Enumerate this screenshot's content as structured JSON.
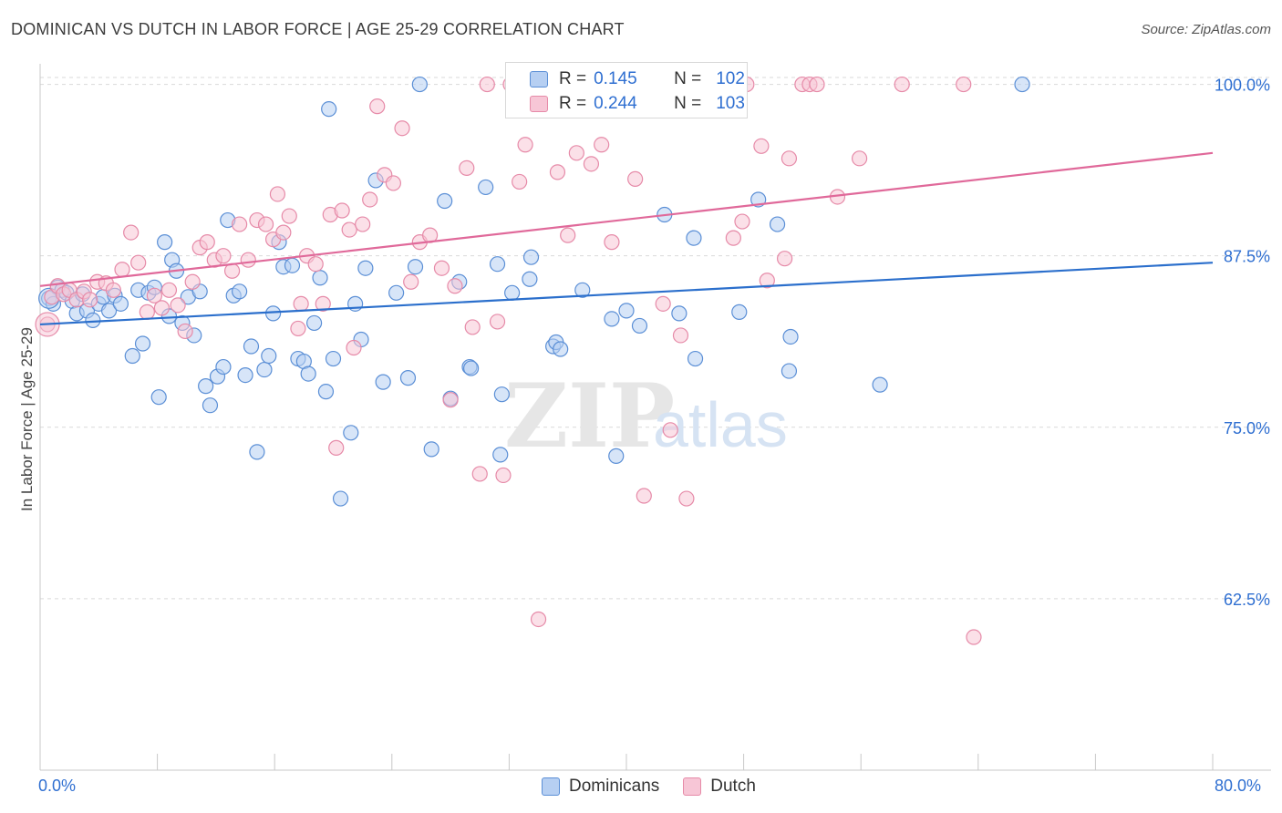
{
  "title": "DOMINICAN VS DUTCH IN LABOR FORCE | AGE 25-29 CORRELATION CHART",
  "source": "Source: ZipAtlas.com",
  "watermark": {
    "zip": "ZIP",
    "atlas": "atlas"
  },
  "colors": {
    "blue_fill": "#b6cff2",
    "blue_stroke": "#5b8fd6",
    "blue_line": "#2b6fcc",
    "pink_fill": "#f7c6d6",
    "pink_stroke": "#e68aa8",
    "pink_line": "#e0699a",
    "tick_label": "#2f6fd1",
    "grid": "#d9d9d9"
  },
  "legend_top": {
    "rows": [
      {
        "r_label": "R =",
        "r_value": "0.145",
        "n_label": "N =",
        "n_value": "102"
      },
      {
        "r_label": "R =",
        "r_value": "0.244",
        "n_label": "N =",
        "n_value": "103"
      }
    ]
  },
  "legend_bottom": {
    "items": [
      "Dominicans",
      "Dutch"
    ]
  },
  "chart_data": {
    "type": "scatter",
    "title": "DOMINICAN VS DUTCH IN LABOR FORCE | AGE 25-29 CORRELATION CHART",
    "xlabel": "",
    "ylabel": "In Labor Force | Age 25-29",
    "xlim": [
      0,
      80
    ],
    "ylim": [
      50,
      101.5
    ],
    "x_tick_labels": [
      "0.0%",
      "80.0%"
    ],
    "y_ticks": [
      62.5,
      75.0,
      87.5,
      100.0
    ],
    "y_tick_labels": [
      "62.5%",
      "75.0%",
      "87.5%",
      "100.0%"
    ],
    "grid": "horizontal dashed",
    "legend_position": "top-center",
    "series": [
      {
        "name": "Dominicans",
        "trend": {
          "x": [
            0,
            80
          ],
          "y": [
            82.5,
            87.0
          ]
        },
        "points": [
          [
            0.6,
            84.4
          ],
          [
            0.9,
            84.0
          ],
          [
            1.2,
            85.2
          ],
          [
            1.5,
            85.0
          ],
          [
            1.8,
            84.8
          ],
          [
            2.2,
            84.2
          ],
          [
            2.5,
            83.3
          ],
          [
            2.9,
            84.7
          ],
          [
            3.2,
            83.5
          ],
          [
            3.6,
            82.8
          ],
          [
            4.0,
            84.0
          ],
          [
            4.3,
            84.5
          ],
          [
            4.7,
            83.5
          ],
          [
            5.1,
            84.6
          ],
          [
            5.5,
            84.0
          ],
          [
            6.3,
            80.2
          ],
          [
            6.7,
            85.0
          ],
          [
            7.0,
            81.1
          ],
          [
            7.4,
            84.8
          ],
          [
            7.8,
            85.2
          ],
          [
            8.1,
            77.2
          ],
          [
            8.5,
            88.5
          ],
          [
            8.8,
            83.1
          ],
          [
            9.0,
            87.2
          ],
          [
            9.3,
            86.4
          ],
          [
            9.7,
            82.6
          ],
          [
            10.1,
            84.5
          ],
          [
            10.5,
            81.7
          ],
          [
            10.9,
            84.9
          ],
          [
            11.3,
            78.0
          ],
          [
            11.6,
            76.6
          ],
          [
            12.1,
            78.7
          ],
          [
            12.5,
            79.4
          ],
          [
            12.8,
            90.1
          ],
          [
            13.2,
            84.6
          ],
          [
            13.6,
            84.9
          ],
          [
            14.0,
            78.8
          ],
          [
            14.4,
            80.9
          ],
          [
            14.8,
            73.2
          ],
          [
            15.3,
            79.2
          ],
          [
            15.6,
            80.2
          ],
          [
            15.9,
            83.3
          ],
          [
            16.3,
            88.5
          ],
          [
            16.6,
            86.7
          ],
          [
            17.2,
            86.8
          ],
          [
            17.6,
            80.0
          ],
          [
            18.0,
            79.8
          ],
          [
            18.3,
            78.9
          ],
          [
            18.7,
            82.6
          ],
          [
            19.1,
            85.9
          ],
          [
            19.5,
            77.6
          ],
          [
            19.7,
            98.2
          ],
          [
            20.0,
            80.0
          ],
          [
            20.5,
            69.8
          ],
          [
            21.2,
            74.6
          ],
          [
            21.5,
            84.0
          ],
          [
            21.9,
            81.4
          ],
          [
            22.2,
            86.6
          ],
          [
            22.9,
            93.0
          ],
          [
            23.4,
            78.3
          ],
          [
            24.3,
            84.8
          ],
          [
            25.1,
            78.6
          ],
          [
            25.6,
            86.7
          ],
          [
            25.9,
            100.0
          ],
          [
            26.7,
            73.4
          ],
          [
            27.6,
            91.5
          ],
          [
            28.0,
            77.1
          ],
          [
            28.6,
            85.6
          ],
          [
            29.3,
            79.4
          ],
          [
            29.4,
            79.3
          ],
          [
            30.4,
            92.5
          ],
          [
            31.2,
            86.9
          ],
          [
            31.4,
            73.0
          ],
          [
            31.5,
            77.4
          ],
          [
            32.2,
            84.8
          ],
          [
            33.4,
            85.8
          ],
          [
            33.5,
            87.4
          ],
          [
            35.0,
            80.9
          ],
          [
            35.2,
            81.2
          ],
          [
            35.5,
            80.7
          ],
          [
            37.0,
            85.0
          ],
          [
            39.0,
            82.9
          ],
          [
            39.3,
            72.9
          ],
          [
            40.0,
            83.5
          ],
          [
            40.9,
            82.4
          ],
          [
            42.6,
            90.5
          ],
          [
            43.6,
            83.3
          ],
          [
            44.6,
            88.8
          ],
          [
            44.7,
            80.0
          ],
          [
            47.7,
            83.4
          ],
          [
            49.0,
            91.6
          ],
          [
            50.3,
            89.8
          ],
          [
            51.2,
            81.6
          ],
          [
            51.1,
            79.1
          ],
          [
            57.3,
            78.1
          ],
          [
            67.0,
            100.0
          ]
        ]
      },
      {
        "name": "Dutch",
        "trend": {
          "x": [
            0,
            80
          ],
          "y": [
            85.3,
            95.0
          ]
        },
        "points": [
          [
            0.5,
            82.5
          ],
          [
            0.8,
            84.5
          ],
          [
            1.2,
            85.3
          ],
          [
            1.6,
            84.7
          ],
          [
            2.0,
            85.0
          ],
          [
            2.5,
            84.3
          ],
          [
            3.0,
            84.9
          ],
          [
            3.4,
            84.3
          ],
          [
            3.9,
            85.6
          ],
          [
            4.5,
            85.5
          ],
          [
            5.0,
            85.0
          ],
          [
            5.6,
            86.5
          ],
          [
            6.2,
            89.2
          ],
          [
            6.7,
            87.0
          ],
          [
            7.3,
            83.4
          ],
          [
            7.8,
            84.6
          ],
          [
            8.3,
            83.7
          ],
          [
            8.8,
            85.0
          ],
          [
            9.4,
            83.9
          ],
          [
            9.9,
            82.0
          ],
          [
            10.4,
            85.6
          ],
          [
            10.9,
            88.1
          ],
          [
            11.4,
            88.5
          ],
          [
            11.9,
            87.2
          ],
          [
            12.5,
            87.5
          ],
          [
            13.1,
            86.4
          ],
          [
            13.6,
            89.8
          ],
          [
            14.2,
            87.2
          ],
          [
            14.8,
            90.1
          ],
          [
            15.4,
            89.8
          ],
          [
            15.9,
            88.7
          ],
          [
            16.2,
            92.0
          ],
          [
            16.6,
            89.2
          ],
          [
            17.0,
            90.4
          ],
          [
            17.6,
            82.2
          ],
          [
            17.8,
            84.0
          ],
          [
            18.2,
            87.5
          ],
          [
            18.8,
            86.9
          ],
          [
            19.3,
            84.0
          ],
          [
            19.8,
            90.5
          ],
          [
            20.2,
            73.5
          ],
          [
            20.6,
            90.8
          ],
          [
            21.1,
            89.4
          ],
          [
            21.4,
            80.8
          ],
          [
            22.0,
            89.8
          ],
          [
            22.5,
            91.6
          ],
          [
            23.0,
            98.4
          ],
          [
            23.5,
            93.4
          ],
          [
            24.1,
            92.8
          ],
          [
            24.7,
            96.8
          ],
          [
            25.3,
            85.6
          ],
          [
            25.9,
            88.5
          ],
          [
            26.6,
            89.0
          ],
          [
            27.4,
            86.6
          ],
          [
            28.0,
            77.0
          ],
          [
            28.3,
            85.3
          ],
          [
            29.1,
            93.9
          ],
          [
            29.5,
            82.3
          ],
          [
            30.0,
            71.6
          ],
          [
            30.5,
            100.0
          ],
          [
            31.2,
            82.7
          ],
          [
            31.6,
            71.5
          ],
          [
            32.1,
            100.0
          ],
          [
            32.7,
            92.9
          ],
          [
            33.1,
            95.6
          ],
          [
            34.0,
            61.0
          ],
          [
            35.0,
            100.0
          ],
          [
            35.3,
            93.6
          ],
          [
            36.0,
            89.0
          ],
          [
            36.6,
            95.0
          ],
          [
            37.0,
            100.0
          ],
          [
            37.6,
            94.2
          ],
          [
            38.3,
            95.6
          ],
          [
            39.0,
            88.5
          ],
          [
            40.6,
            93.1
          ],
          [
            41.2,
            70.0
          ],
          [
            42.5,
            84.0
          ],
          [
            43.0,
            74.8
          ],
          [
            43.7,
            81.7
          ],
          [
            44.1,
            69.8
          ],
          [
            47.3,
            88.8
          ],
          [
            47.9,
            90.0
          ],
          [
            48.2,
            100.0
          ],
          [
            49.2,
            95.5
          ],
          [
            49.6,
            85.7
          ],
          [
            50.8,
            87.3
          ],
          [
            51.1,
            94.6
          ],
          [
            52.0,
            100.0
          ],
          [
            52.5,
            100.0
          ],
          [
            53.0,
            100.0
          ],
          [
            54.4,
            91.8
          ],
          [
            55.9,
            94.6
          ],
          [
            58.8,
            100.0
          ],
          [
            63.0,
            100.0
          ],
          [
            63.7,
            59.7
          ]
        ]
      }
    ]
  }
}
